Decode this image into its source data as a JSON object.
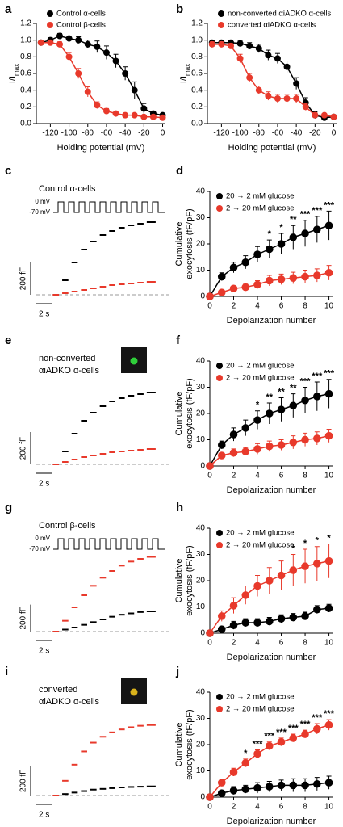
{
  "chart_data": [
    {
      "panel": "a",
      "type": "line",
      "xlabel": "Holding potential (mV)",
      "ylabel": "I/I",
      "ylabel_sub": "max",
      "x": [
        -130,
        -120,
        -110,
        -100,
        -90,
        -80,
        -70,
        -60,
        -50,
        -40,
        -30,
        -20,
        -10,
        0
      ],
      "xlim": [
        -135,
        3
      ],
      "xticks": [
        -120,
        -100,
        -80,
        -60,
        -40,
        -20,
        0
      ],
      "ylim": [
        0,
        1.2
      ],
      "yticks": [
        {
          "value": 0,
          "label": "0.0"
        },
        0.2,
        0.4,
        0.6,
        0.8,
        {
          "value": 1,
          "label": "1.0"
        },
        1.2
      ],
      "series": [
        {
          "name": "Control α-cells",
          "color": "#000000",
          "values": [
            0.97,
            1.0,
            1.05,
            1.02,
            1.0,
            0.95,
            0.92,
            0.85,
            0.75,
            0.6,
            0.4,
            0.18,
            0.12,
            0.1
          ],
          "errors": [
            0.03,
            0.03,
            0.03,
            0.03,
            0.04,
            0.05,
            0.07,
            0.08,
            0.08,
            0.08,
            0.1,
            0.06,
            0.03,
            0.02
          ]
        },
        {
          "name": "Control β-cells",
          "color": "#e8392b",
          "values": [
            0.97,
            0.97,
            0.95,
            0.8,
            0.6,
            0.38,
            0.22,
            0.15,
            0.12,
            0.1,
            0.1,
            0.08,
            0.08,
            0.07
          ],
          "errors": [
            0.03,
            0.03,
            0.03,
            0.05,
            0.06,
            0.06,
            0.04,
            0.03,
            0.02,
            0.02,
            0.02,
            0.02,
            0.02,
            0.02
          ]
        }
      ]
    },
    {
      "panel": "b",
      "type": "line",
      "xlabel": "Holding potential (mV)",
      "ylabel": "I/I",
      "ylabel_sub": "max",
      "x": [
        -130,
        -120,
        -110,
        -100,
        -90,
        -80,
        -70,
        -60,
        -50,
        -40,
        -30,
        -20,
        -10,
        0
      ],
      "xlim": [
        -135,
        3
      ],
      "xticks": [
        -120,
        -100,
        -80,
        -60,
        -40,
        -20,
        0
      ],
      "ylim": [
        0,
        1.2
      ],
      "yticks": [
        {
          "value": 0,
          "label": "0.0"
        },
        0.2,
        0.4,
        0.6,
        0.8,
        {
          "value": 1,
          "label": "1.0"
        },
        1.2
      ],
      "series": [
        {
          "name": "non-converted αiADKO α-cells",
          "color": "#000000",
          "values": [
            0.97,
            0.97,
            0.97,
            0.96,
            0.93,
            0.9,
            0.82,
            0.78,
            0.68,
            0.48,
            0.25,
            0.1,
            0.07,
            0.08
          ],
          "errors": [
            0.03,
            0.03,
            0.03,
            0.03,
            0.04,
            0.05,
            0.06,
            0.06,
            0.07,
            0.07,
            0.06,
            0.04,
            0.03,
            0.02
          ]
        },
        {
          "name": "converted αiADKO α-cells",
          "color": "#e8392b",
          "values": [
            0.95,
            0.95,
            0.93,
            0.78,
            0.55,
            0.4,
            0.33,
            0.3,
            0.3,
            0.3,
            0.2,
            0.1,
            0.1,
            0.08
          ],
          "errors": [
            0.03,
            0.03,
            0.03,
            0.05,
            0.05,
            0.05,
            0.05,
            0.05,
            0.05,
            0.05,
            0.04,
            0.03,
            0.02,
            0.02
          ]
        }
      ]
    },
    {
      "panel": "c",
      "type": "trace",
      "title": [
        "Control α-cells"
      ],
      "protocol_labels": [
        "0 mV",
        "-70 mV"
      ],
      "x": [
        0,
        1.2,
        2.4,
        3.6,
        4.8,
        6,
        7.2,
        8.4,
        9.6,
        10.8,
        12
      ],
      "xlim": [
        -2,
        15
      ],
      "ylim": [
        0,
        500
      ],
      "scalebar_y": {
        "value": 200,
        "label": "200 fF"
      },
      "scalebar_x": {
        "value": 2,
        "label": "2 s"
      },
      "series": [
        {
          "color": "#000000",
          "values": [
            0,
            90,
            200,
            280,
            330,
            370,
            395,
            415,
            430,
            440,
            450
          ]
        },
        {
          "color": "#e8392b",
          "values": [
            0,
            10,
            20,
            30,
            40,
            50,
            60,
            65,
            70,
            75,
            80
          ]
        }
      ]
    },
    {
      "panel": "d",
      "type": "line",
      "xlabel": "Depolarization number",
      "ylabel": [
        "Cumulative",
        "exocytosis (fF/pF)"
      ],
      "x": [
        0,
        1,
        2,
        3,
        4,
        5,
        6,
        7,
        8,
        9,
        10
      ],
      "xlim": [
        0,
        10.3
      ],
      "xticks": [
        0,
        2,
        4,
        6,
        8,
        10
      ],
      "ylim": [
        0,
        40
      ],
      "yticks": [
        0,
        10,
        20,
        30,
        40
      ],
      "series": [
        {
          "name": "20 → 2 mM glucose",
          "color": "#000000",
          "values": [
            0,
            7.5,
            11,
            13,
            16,
            18,
            20,
            22.5,
            24,
            25.5,
            27
          ],
          "errors": [
            0,
            1.5,
            2,
            2.5,
            3,
            3.5,
            4,
            4.5,
            5,
            5,
            5.5
          ]
        },
        {
          "name": "2 → 20 mM glucose",
          "color": "#e8392b",
          "values": [
            0,
            1.5,
            3,
            3.5,
            4.5,
            6,
            6.5,
            7,
            7.5,
            8,
            9
          ],
          "errors": [
            0,
            0.8,
            1,
            1.2,
            1.5,
            2,
            2,
            2.2,
            2.5,
            2.5,
            2.8
          ]
        }
      ],
      "annotations": [
        null,
        null,
        null,
        null,
        null,
        "*",
        "*",
        "**",
        "***",
        "***",
        "***"
      ]
    },
    {
      "panel": "e",
      "type": "trace",
      "title": [
        "non-converted",
        "αiADKO α-cells"
      ],
      "inset_color": "#2fcf3a",
      "x": [
        0,
        1.2,
        2.4,
        3.6,
        4.8,
        6,
        7.2,
        8.4,
        9.6,
        10.8,
        12
      ],
      "xlim": [
        -2,
        15
      ],
      "ylim": [
        0,
        500
      ],
      "scalebar_y": {
        "value": 200,
        "label": "200 fF"
      },
      "scalebar_x": {
        "value": 2,
        "label": "2 s"
      },
      "series": [
        {
          "color": "#000000",
          "values": [
            0,
            80,
            190,
            270,
            320,
            360,
            390,
            410,
            425,
            435,
            445
          ]
        },
        {
          "color": "#e8392b",
          "values": [
            0,
            15,
            30,
            45,
            55,
            65,
            75,
            80,
            85,
            90,
            95
          ]
        }
      ]
    },
    {
      "panel": "f",
      "type": "line",
      "xlabel": "Depolarization number",
      "ylabel": [
        "Cumulative",
        "exocytosis (fF/pF)"
      ],
      "x": [
        0,
        1,
        2,
        3,
        4,
        5,
        6,
        7,
        8,
        9,
        10
      ],
      "xlim": [
        0,
        10.3
      ],
      "xticks": [
        0,
        2,
        4,
        6,
        8,
        10
      ],
      "ylim": [
        0,
        40
      ],
      "yticks": [
        0,
        10,
        20,
        30,
        40
      ],
      "series": [
        {
          "name": "20 → 2 mM glucose",
          "color": "#000000",
          "values": [
            0,
            8,
            12,
            14.5,
            17.5,
            20,
            21.5,
            23,
            25,
            26.5,
            27.5
          ],
          "errors": [
            0,
            1.5,
            2.5,
            3,
            3.5,
            4,
            4.5,
            4.5,
            5,
            5.5,
            5.5
          ]
        },
        {
          "name": "2 → 20 mM glucose",
          "color": "#e8392b",
          "values": [
            0,
            4,
            5,
            5.5,
            6.5,
            7.5,
            8,
            9,
            10,
            10.5,
            11.5
          ],
          "errors": [
            0,
            1,
            1.5,
            1.5,
            2,
            2,
            2,
            2.5,
            2.5,
            2.5,
            2.5
          ]
        }
      ],
      "annotations": [
        null,
        null,
        null,
        null,
        "*",
        "**",
        "**",
        "**",
        "***",
        "***",
        "***"
      ]
    },
    {
      "panel": "g",
      "type": "trace",
      "title": [
        "Control β-cells"
      ],
      "protocol_labels": [
        "0 mV",
        "-70 mV"
      ],
      "x": [
        0,
        1.2,
        2.4,
        3.6,
        4.8,
        6,
        7.2,
        8.4,
        9.6,
        10.8,
        12
      ],
      "xlim": [
        -2,
        15
      ],
      "ylim": [
        0,
        600
      ],
      "scalebar_y": {
        "value": 200,
        "label": "200 fF"
      },
      "scalebar_x": {
        "value": 2,
        "label": "2 s"
      },
      "series": [
        {
          "color": "#000000",
          "values": [
            0,
            15,
            30,
            50,
            70,
            90,
            110,
            125,
            135,
            145,
            150
          ]
        },
        {
          "color": "#e8392b",
          "values": [
            0,
            80,
            180,
            270,
            340,
            400,
            450,
            490,
            520,
            540,
            555
          ]
        }
      ]
    },
    {
      "panel": "h",
      "type": "line",
      "xlabel": "Depolarization number",
      "ylabel": [
        "Cumulative",
        "exocytosis (fF/pF)"
      ],
      "x": [
        0,
        1,
        2,
        3,
        4,
        5,
        6,
        7,
        8,
        9,
        10
      ],
      "xlim": [
        0,
        10.3
      ],
      "xticks": [
        0,
        2,
        4,
        6,
        8,
        10
      ],
      "ylim": [
        0,
        40
      ],
      "yticks": [
        0,
        10,
        20,
        30,
        40
      ],
      "series": [
        {
          "name": "20 → 2 mM glucose",
          "color": "#000000",
          "values": [
            0,
            1.5,
            3,
            4,
            4,
            4.5,
            5.5,
            6,
            6.5,
            9,
            9.5
          ],
          "errors": [
            0,
            1,
            1.5,
            1.5,
            1.5,
            1.5,
            1.5,
            1.5,
            1.5,
            1.5,
            1.5
          ]
        },
        {
          "name": "2 → 20 mM glucose",
          "color": "#e8392b",
          "values": [
            0,
            6.5,
            10.5,
            14.5,
            18,
            20,
            22,
            24,
            25.5,
            26.5,
            27.5
          ],
          "errors": [
            0,
            2,
            3,
            3.5,
            4,
            5,
            5.5,
            6,
            6.5,
            6.5,
            6.5
          ]
        }
      ],
      "annotations": [
        null,
        null,
        null,
        null,
        null,
        null,
        null,
        "*",
        "*",
        "*",
        "*"
      ]
    },
    {
      "panel": "i",
      "type": "trace",
      "title": [
        "converted",
        "αiADKO α-cells"
      ],
      "inset_color": "#d9b21c",
      "x": [
        0,
        1.2,
        2.4,
        3.6,
        4.8,
        6,
        7.2,
        8.4,
        9.6,
        10.8,
        12
      ],
      "xlim": [
        -2,
        15
      ],
      "ylim": [
        0,
        550
      ],
      "scalebar_y": {
        "value": 200,
        "label": "200 fF"
      },
      "scalebar_x": {
        "value": 2,
        "label": "2 s"
      },
      "series": [
        {
          "color": "#000000",
          "values": [
            0,
            10,
            20,
            30,
            40,
            45,
            50,
            55,
            58,
            60,
            62
          ]
        },
        {
          "color": "#e8392b",
          "values": [
            0,
            100,
            210,
            300,
            360,
            400,
            430,
            450,
            465,
            475,
            480
          ]
        }
      ]
    },
    {
      "panel": "j",
      "type": "line",
      "xlabel": "Depolarization number",
      "ylabel": [
        "Cumulative",
        "exocytosis (fF/pF)"
      ],
      "x": [
        0,
        1,
        2,
        3,
        4,
        5,
        6,
        7,
        8,
        9,
        10
      ],
      "xlim": [
        0,
        10.3
      ],
      "xticks": [
        0,
        2,
        4,
        6,
        8,
        10
      ],
      "ylim": [
        0,
        40
      ],
      "yticks": [
        0,
        10,
        20,
        30,
        40
      ],
      "series": [
        {
          "name": "20 → 2 mM glucose",
          "color": "#000000",
          "values": [
            0,
            1.5,
            2.5,
            3,
            3.5,
            4,
            4.5,
            4.5,
            4.5,
            5,
            5.5
          ],
          "errors": [
            0,
            1,
            1.5,
            1.5,
            2,
            2,
            2,
            2.5,
            2.5,
            2.5,
            2.5
          ]
        },
        {
          "name": "2 → 20 mM glucose",
          "color": "#e8392b",
          "values": [
            0,
            5.5,
            9.5,
            13,
            16.5,
            19.5,
            21,
            22.5,
            24,
            26,
            27.5
          ],
          "errors": [
            0,
            1,
            1.5,
            1.5,
            1.5,
            1.5,
            1.5,
            1.5,
            1.5,
            2,
            2
          ]
        }
      ],
      "annotations": [
        null,
        null,
        null,
        "*",
        "***",
        "***",
        "***",
        "***",
        "***",
        "***",
        "***"
      ]
    }
  ]
}
